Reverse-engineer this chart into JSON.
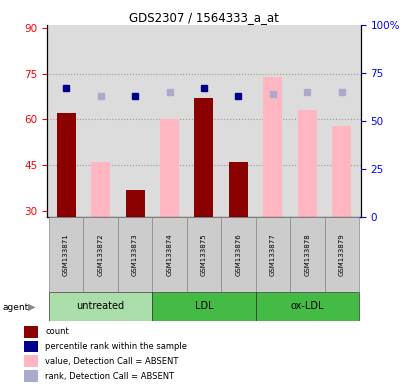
{
  "title": "GDS2307 / 1564333_a_at",
  "samples": [
    "GSM133871",
    "GSM133872",
    "GSM133873",
    "GSM133874",
    "GSM133875",
    "GSM133876",
    "GSM133877",
    "GSM133878",
    "GSM133879"
  ],
  "left_ylim": [
    28,
    91
  ],
  "left_yticks": [
    30,
    45,
    60,
    75,
    90
  ],
  "right_ylim": [
    0,
    100
  ],
  "right_yticks": [
    0,
    25,
    50,
    75,
    100
  ],
  "right_yticklabels": [
    "0",
    "25",
    "50",
    "75",
    "100%"
  ],
  "bar_values": [
    62,
    null,
    37,
    null,
    67,
    46,
    null,
    null,
    null
  ],
  "bar_color_present": "#8B0000",
  "absent_bar_values": [
    null,
    46,
    null,
    60,
    null,
    null,
    74,
    63,
    58
  ],
  "absent_bar_color": "#FFB6C1",
  "rank_present": [
    67,
    null,
    63,
    null,
    67,
    63,
    null,
    null,
    null
  ],
  "rank_present_color": "#00008B",
  "rank_absent": [
    null,
    63,
    null,
    65,
    null,
    null,
    64,
    65,
    65
  ],
  "rank_absent_color": "#AAAACC",
  "rank_marker_size": 4,
  "dotted_line_color": "#999999",
  "bg_color": "#DCDCDC",
  "groups_info": [
    {
      "label": "untreated",
      "start": 0,
      "end": 2,
      "color": "#AADDAA"
    },
    {
      "label": "LDL",
      "start": 3,
      "end": 5,
      "color": "#44BB44"
    },
    {
      "label": "ox-LDL",
      "start": 6,
      "end": 8,
      "color": "#44BB44"
    }
  ],
  "legend_items": [
    {
      "color": "#8B0000",
      "label": "count"
    },
    {
      "color": "#00008B",
      "label": "percentile rank within the sample"
    },
    {
      "color": "#FFB6C1",
      "label": "value, Detection Call = ABSENT"
    },
    {
      "color": "#AAAACC",
      "label": "rank, Detection Call = ABSENT"
    }
  ]
}
